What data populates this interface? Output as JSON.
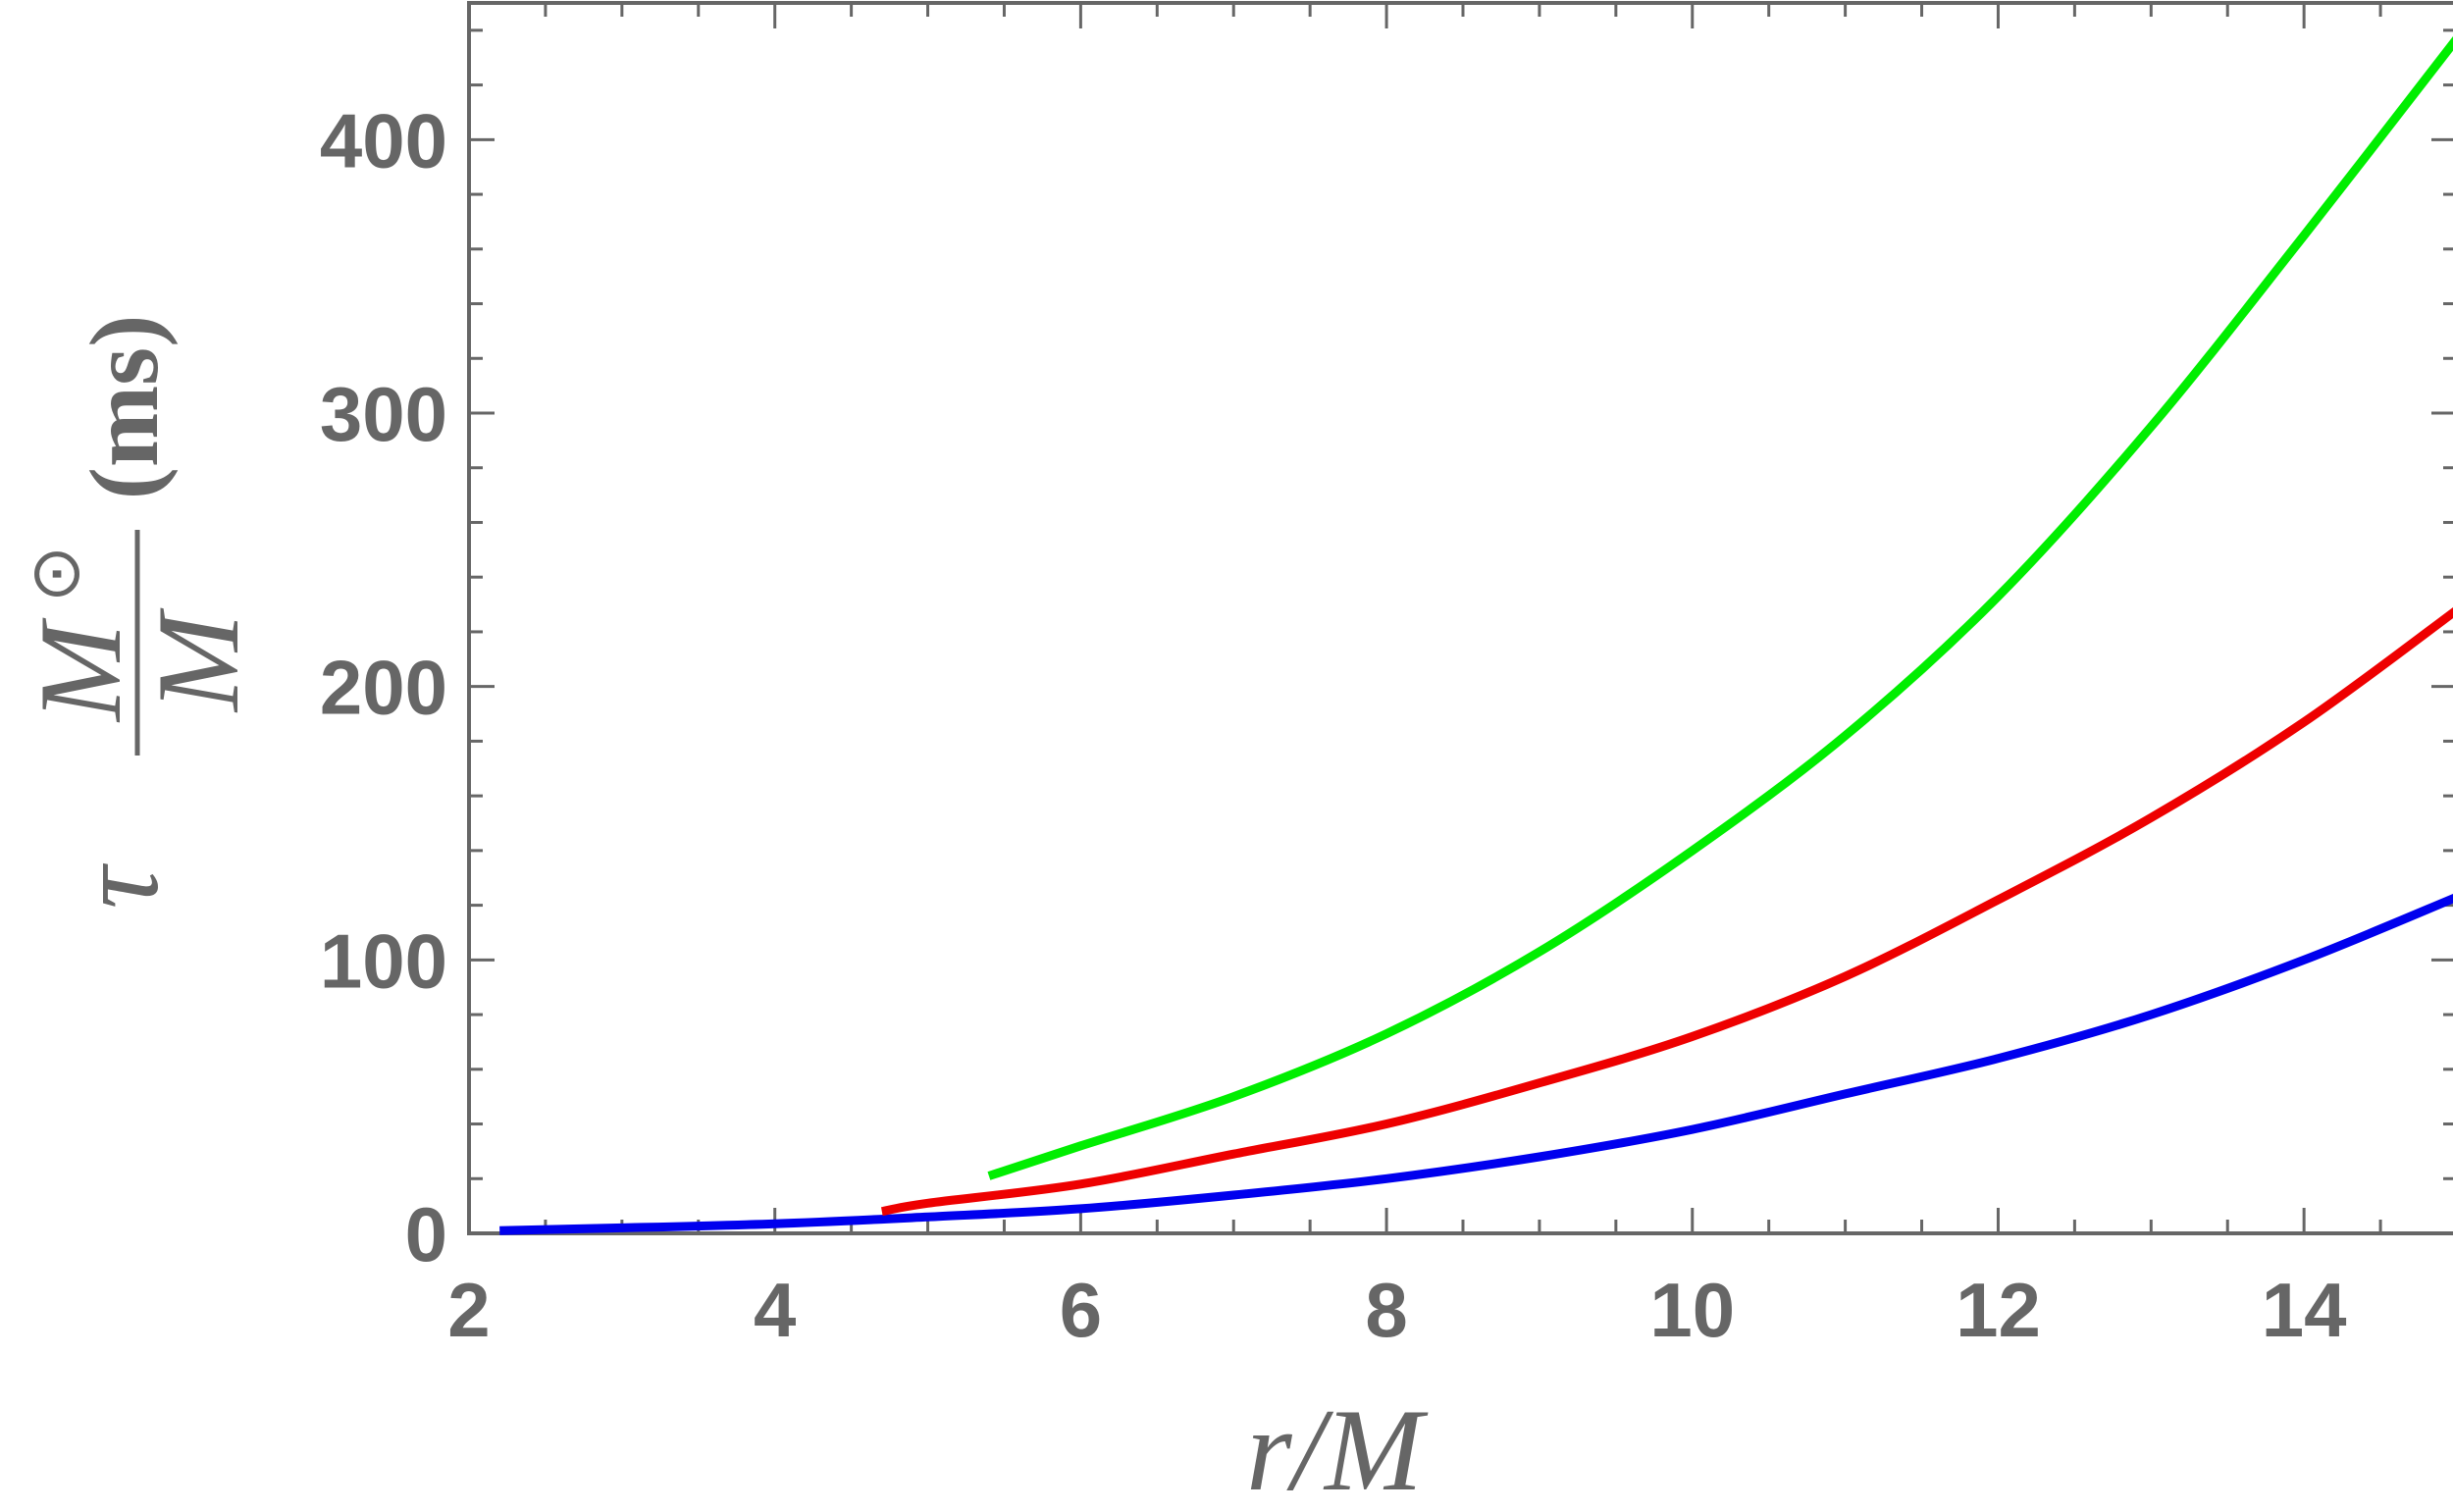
{
  "chart_data": {
    "type": "line",
    "xlabel": "r/M",
    "ylabel": {
      "symbol": "τ",
      "numerator": "M",
      "numerator_sup": "⊙",
      "denominator": "M",
      "unit": "(ms)"
    },
    "xlim": [
      2,
      15
    ],
    "ylim": [
      0,
      450
    ],
    "xticks": [
      2,
      4,
      6,
      8,
      10,
      12,
      14
    ],
    "yticks": [
      0,
      100,
      200,
      300,
      400
    ],
    "grid": false,
    "legend": "none",
    "series": [
      {
        "color": "#0000ee",
        "x": [
          2.2,
          3,
          4,
          5,
          6,
          7,
          8,
          9,
          10,
          11,
          12,
          13,
          14,
          15
        ],
        "y": [
          1,
          2,
          3.5,
          6,
          9,
          14,
          20,
          28,
          38,
          51,
          64,
          80,
          100,
          123
        ]
      },
      {
        "color": "#ee0000",
        "x": [
          4.7,
          5,
          6,
          7,
          8,
          9,
          10,
          11,
          12,
          13,
          14,
          15
        ],
        "y": [
          8,
          11,
          18,
          29,
          40,
          55,
          72,
          94,
          122,
          152,
          187,
          228
        ]
      },
      {
        "color": "#00ee00",
        "x": [
          5.4,
          6,
          7,
          8,
          9,
          10,
          11,
          12,
          13,
          14,
          15
        ],
        "y": [
          21,
          32,
          50,
          73,
          103,
          140,
          182,
          233,
          295,
          365,
          437
        ]
      }
    ]
  }
}
